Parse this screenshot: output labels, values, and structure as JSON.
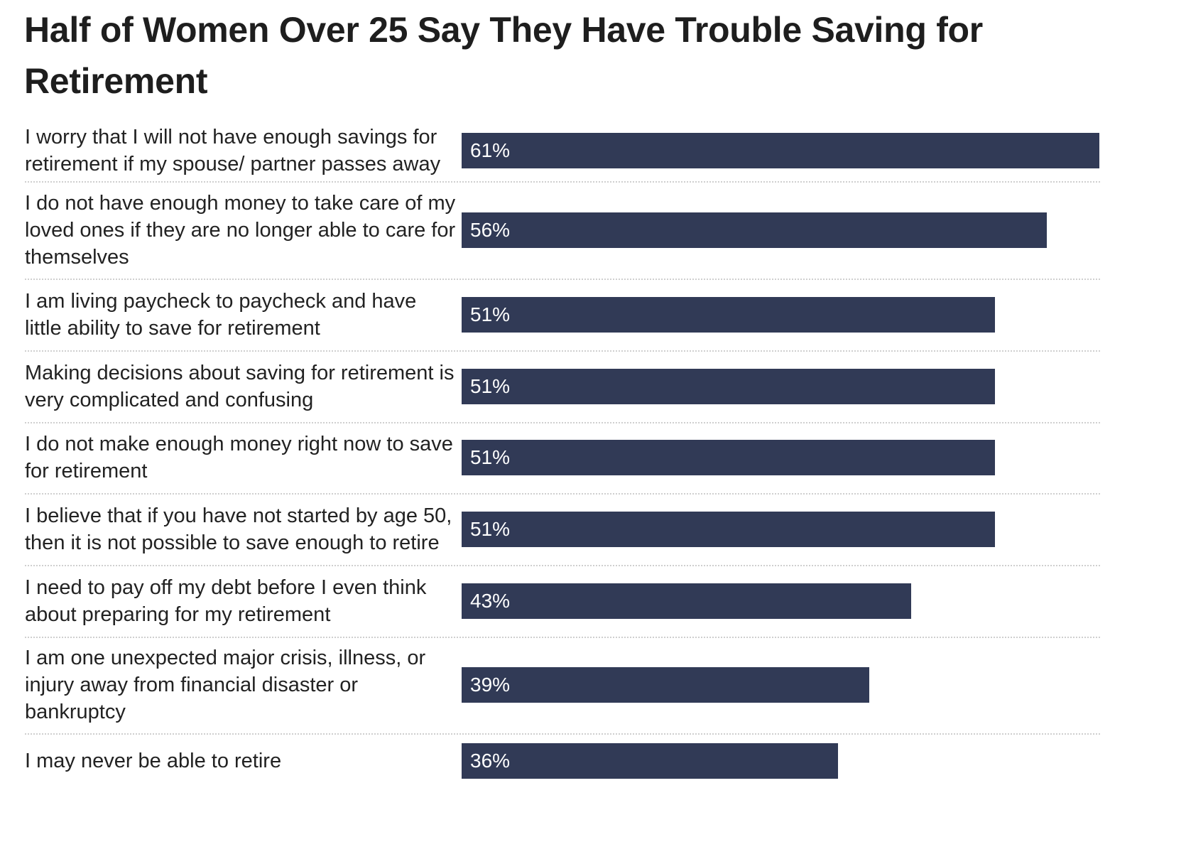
{
  "chart_data": {
    "type": "bar",
    "orientation": "horizontal",
    "title": "Half of Women Over 25 Say They Have Trouble Saving for Retirement",
    "categories": [
      "I worry that I will not have enough savings for retirement if my spouse/ partner passes away",
      "I do not have enough money to take care of my loved ones if they are no longer able to care for themselves",
      "I am living paycheck to paycheck and have little ability to save for retirement",
      "Making decisions about saving for retirement is very complicated and confusing",
      "I do not make enough money right now to save for retirement",
      "I believe that if you have not started by age 50, then it is not possible to save enough to retire",
      "I need to pay off my debt before I even think about preparing for my retirement",
      "I am one unexpected major crisis, illness, or injury away from financial disaster or bankruptcy",
      "I may never be able to retire"
    ],
    "values": [
      61,
      56,
      51,
      51,
      51,
      51,
      43,
      39,
      36
    ],
    "value_labels": [
      "61%",
      "56%",
      "51%",
      "51%",
      "51%",
      "51%",
      "43%",
      "39%",
      "36%"
    ],
    "xlim": [
      0,
      61
    ],
    "grid": false,
    "legend": "none",
    "bar_color": "#313a56",
    "label_color": "#ffffff"
  }
}
